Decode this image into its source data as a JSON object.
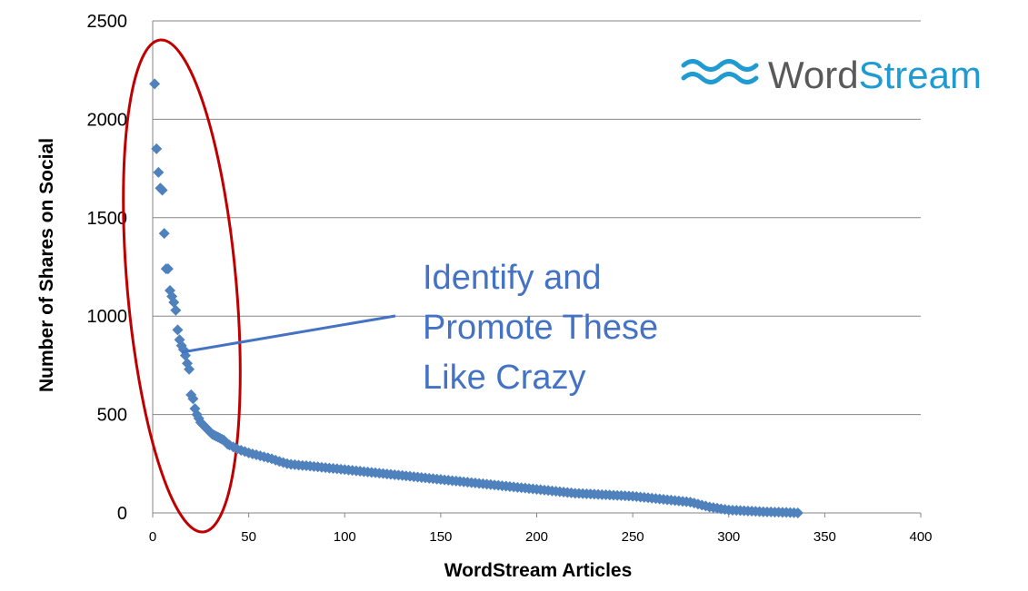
{
  "chart_data": {
    "type": "scatter",
    "title": "",
    "xlabel": "WordStream  Articles",
    "ylabel": "Number of Shares on Social",
    "xlim": [
      0,
      400
    ],
    "ylim": [
      0,
      2500
    ],
    "xticks": [
      0,
      50,
      100,
      150,
      200,
      250,
      300,
      350,
      400
    ],
    "yticks": [
      0,
      500,
      1000,
      1500,
      2000,
      2500
    ],
    "grid": "horizontal",
    "legend": "none",
    "marker": "diamond",
    "series_color": "#4f81bd",
    "annotation": {
      "lines": [
        "Identify and",
        "Promote These",
        "Like Crazy"
      ],
      "color": "#4472c4",
      "points_to": [
        14,
        820
      ],
      "highlight_ellipse_color": "#c00000"
    },
    "logo": {
      "parts": [
        "Word",
        "Stream"
      ],
      "word_color": "#595959",
      "stream_color": "#1f9bd1"
    },
    "points": [
      [
        1,
        2180
      ],
      [
        2,
        1850
      ],
      [
        3,
        1730
      ],
      [
        4,
        1650
      ],
      [
        5,
        1640
      ],
      [
        6,
        1420
      ],
      [
        7,
        1240
      ],
      [
        8,
        1240
      ],
      [
        9,
        1130
      ],
      [
        10,
        1100
      ],
      [
        11,
        1070
      ],
      [
        12,
        1030
      ],
      [
        13,
        930
      ],
      [
        14,
        880
      ],
      [
        15,
        850
      ],
      [
        16,
        830
      ],
      [
        17,
        800
      ],
      [
        18,
        760
      ],
      [
        19,
        730
      ],
      [
        20,
        600
      ],
      [
        21,
        580
      ],
      [
        22,
        530
      ],
      [
        23,
        500
      ],
      [
        24,
        480
      ],
      [
        25,
        460
      ],
      [
        26,
        450
      ],
      [
        27,
        440
      ],
      [
        28,
        430
      ],
      [
        29,
        420
      ],
      [
        30,
        410
      ],
      [
        31,
        400
      ],
      [
        32,
        395
      ],
      [
        33,
        390
      ],
      [
        34,
        385
      ],
      [
        35,
        380
      ],
      [
        36,
        375
      ],
      [
        37,
        370
      ],
      [
        38,
        360
      ],
      [
        39,
        350
      ],
      [
        40,
        345
      ],
      [
        42,
        335
      ],
      [
        44,
        325
      ],
      [
        46,
        318
      ],
      [
        48,
        312
      ],
      [
        50,
        305
      ],
      [
        52,
        300
      ],
      [
        54,
        295
      ],
      [
        56,
        290
      ],
      [
        58,
        285
      ],
      [
        60,
        280
      ],
      [
        62,
        275
      ],
      [
        64,
        268
      ],
      [
        66,
        262
      ],
      [
        68,
        256
      ],
      [
        70,
        250
      ],
      [
        72,
        247
      ],
      [
        74,
        245
      ],
      [
        76,
        243
      ],
      [
        78,
        241
      ],
      [
        80,
        240
      ],
      [
        82,
        238
      ],
      [
        84,
        236
      ],
      [
        86,
        234
      ],
      [
        88,
        232
      ],
      [
        90,
        230
      ],
      [
        92,
        228
      ],
      [
        94,
        226
      ],
      [
        96,
        224
      ],
      [
        98,
        222
      ],
      [
        100,
        220
      ],
      [
        102,
        218
      ],
      [
        104,
        216
      ],
      [
        106,
        214
      ],
      [
        108,
        212
      ],
      [
        110,
        210
      ],
      [
        112,
        208
      ],
      [
        114,
        206
      ],
      [
        116,
        204
      ],
      [
        118,
        202
      ],
      [
        120,
        200
      ],
      [
        122,
        198
      ],
      [
        124,
        196
      ],
      [
        126,
        194
      ],
      [
        128,
        192
      ],
      [
        130,
        190
      ],
      [
        132,
        188
      ],
      [
        134,
        186
      ],
      [
        136,
        184
      ],
      [
        138,
        182
      ],
      [
        140,
        180
      ],
      [
        142,
        178
      ],
      [
        144,
        176
      ],
      [
        146,
        174
      ],
      [
        148,
        172
      ],
      [
        150,
        170
      ],
      [
        152,
        168
      ],
      [
        154,
        166
      ],
      [
        156,
        164
      ],
      [
        158,
        162
      ],
      [
        160,
        160
      ],
      [
        162,
        158
      ],
      [
        164,
        156
      ],
      [
        166,
        154
      ],
      [
        168,
        152
      ],
      [
        170,
        150
      ],
      [
        172,
        148
      ],
      [
        174,
        146
      ],
      [
        176,
        144
      ],
      [
        178,
        142
      ],
      [
        180,
        140
      ],
      [
        182,
        138
      ],
      [
        184,
        136
      ],
      [
        186,
        134
      ],
      [
        188,
        132
      ],
      [
        190,
        130
      ],
      [
        192,
        128
      ],
      [
        194,
        126
      ],
      [
        196,
        124
      ],
      [
        198,
        122
      ],
      [
        200,
        120
      ],
      [
        202,
        118
      ],
      [
        204,
        116
      ],
      [
        206,
        114
      ],
      [
        208,
        112
      ],
      [
        210,
        110
      ],
      [
        212,
        108
      ],
      [
        214,
        106
      ],
      [
        216,
        104
      ],
      [
        218,
        102
      ],
      [
        220,
        100
      ],
      [
        222,
        99
      ],
      [
        224,
        98
      ],
      [
        226,
        97
      ],
      [
        228,
        96
      ],
      [
        230,
        95
      ],
      [
        232,
        94
      ],
      [
        234,
        93
      ],
      [
        236,
        92
      ],
      [
        238,
        91
      ],
      [
        240,
        90
      ],
      [
        242,
        89
      ],
      [
        244,
        88
      ],
      [
        246,
        87
      ],
      [
        248,
        86
      ],
      [
        250,
        85
      ],
      [
        252,
        83
      ],
      [
        254,
        81
      ],
      [
        256,
        79
      ],
      [
        258,
        77
      ],
      [
        260,
        75
      ],
      [
        262,
        73
      ],
      [
        264,
        71
      ],
      [
        266,
        69
      ],
      [
        268,
        67
      ],
      [
        270,
        65
      ],
      [
        272,
        63
      ],
      [
        274,
        61
      ],
      [
        276,
        59
      ],
      [
        278,
        57
      ],
      [
        280,
        55
      ],
      [
        282,
        50
      ],
      [
        284,
        45
      ],
      [
        286,
        40
      ],
      [
        288,
        35
      ],
      [
        290,
        30
      ],
      [
        292,
        27
      ],
      [
        294,
        24
      ],
      [
        296,
        21
      ],
      [
        298,
        18
      ],
      [
        300,
        15
      ],
      [
        302,
        14
      ],
      [
        304,
        13
      ],
      [
        306,
        12
      ],
      [
        308,
        11
      ],
      [
        310,
        10
      ],
      [
        312,
        9
      ],
      [
        314,
        8
      ],
      [
        316,
        7
      ],
      [
        318,
        6
      ],
      [
        320,
        5
      ],
      [
        322,
        5
      ],
      [
        324,
        4
      ],
      [
        326,
        4
      ],
      [
        328,
        3
      ],
      [
        330,
        3
      ],
      [
        332,
        2
      ],
      [
        334,
        1
      ],
      [
        336,
        0
      ]
    ]
  }
}
